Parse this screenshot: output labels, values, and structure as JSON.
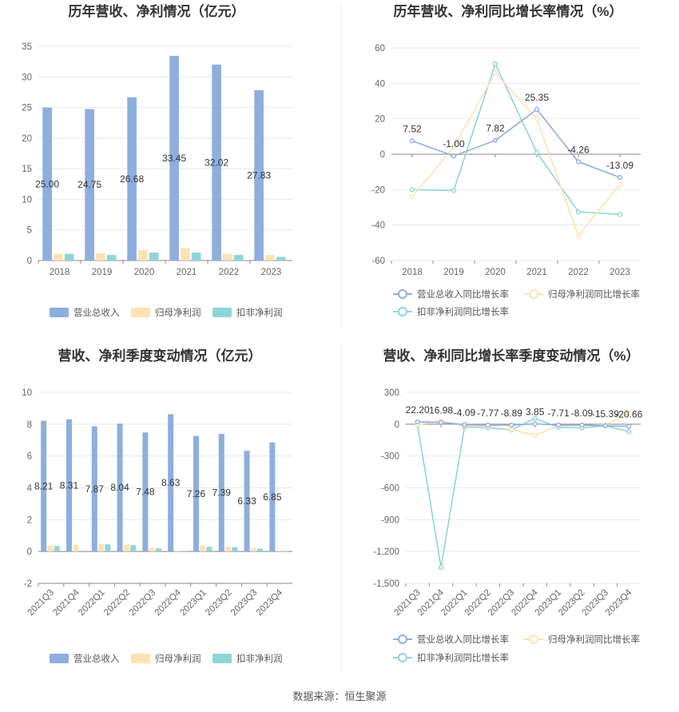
{
  "footer": {
    "source": "数据来源：恒生聚源"
  },
  "colors": {
    "revenue": "#8eaedd",
    "parent_profit": "#fde2b3",
    "nonrecurring_profit": "#8fd5d8",
    "axis": "#888888",
    "grid": "#e8e8e8"
  },
  "chart_data": [
    {
      "type": "bar",
      "title": "历年营收、净利情况（亿元）",
      "categories": [
        "2018",
        "2019",
        "2020",
        "2021",
        "2022",
        "2023"
      ],
      "ylim": [
        0,
        35
      ],
      "yticks": [
        "0",
        "5",
        "10",
        "15",
        "20",
        "25",
        "30",
        "35"
      ],
      "grid": true,
      "legend": "bottom",
      "series": [
        {
          "name": "营业总收入",
          "values": [
            25.0,
            24.75,
            26.68,
            33.45,
            32.02,
            27.83
          ],
          "labels": [
            "25.00",
            "24.75",
            "26.68",
            "33.45",
            "32.02",
            "27.83"
          ]
        },
        {
          "name": "归母净利润",
          "values": [
            1.1,
            1.2,
            1.7,
            2.0,
            1.1,
            0.9
          ]
        },
        {
          "name": "扣非净利润",
          "values": [
            1.1,
            0.9,
            1.3,
            1.3,
            0.9,
            0.6
          ]
        }
      ]
    },
    {
      "type": "line",
      "title": "历年营收、净利同比增长率情况（%）",
      "categories": [
        "2018",
        "2019",
        "2020",
        "2021",
        "2022",
        "2023"
      ],
      "ylim": [
        -60,
        60
      ],
      "yticks": [
        "-60",
        "-40",
        "-20",
        "0",
        "20",
        "40",
        "60"
      ],
      "grid": true,
      "legend": "bottom",
      "series": [
        {
          "name": "营业总收入同比增长率",
          "values": [
            7.52,
            -1.0,
            7.82,
            25.35,
            -4.26,
            -13.09
          ],
          "labels": [
            "7.52",
            "-1.00",
            "7.82",
            "25.35",
            "-4.26",
            "-13.09"
          ]
        },
        {
          "name": "归母净利润同比增长率",
          "values": [
            -24,
            4,
            46,
            20,
            -46,
            -17
          ]
        },
        {
          "name": "扣非净利润同比增长率",
          "values": [
            -20,
            -20.5,
            51,
            1,
            -32.5,
            -34
          ]
        }
      ]
    },
    {
      "type": "bar",
      "title": "营收、净利季度变动情况（亿元）",
      "categories": [
        "2021Q3",
        "2021Q4",
        "2022Q1",
        "2022Q2",
        "2022Q3",
        "2022Q4",
        "2023Q1",
        "2023Q2",
        "2023Q3",
        "2023Q4"
      ],
      "ylim": [
        -2,
        10
      ],
      "yticks": [
        "-2",
        "0",
        "2",
        "4",
        "6",
        "8",
        "10"
      ],
      "grid": true,
      "legend": "bottom",
      "series": [
        {
          "name": "营业总收入",
          "values": [
            8.21,
            8.31,
            7.87,
            8.04,
            7.48,
            8.63,
            7.26,
            7.39,
            6.33,
            6.85
          ],
          "labels": [
            "8.21",
            "8.31",
            "7.87",
            "8.04",
            "7.48",
            "8.63",
            "7.26",
            "7.39",
            "6.33",
            "6.85"
          ]
        },
        {
          "name": "归母净利润",
          "values": [
            0.38,
            0.42,
            0.48,
            0.45,
            0.25,
            0.03,
            0.38,
            0.32,
            0.22,
            0.04
          ]
        },
        {
          "name": "扣非净利润",
          "values": [
            0.35,
            -0.05,
            0.45,
            0.4,
            0.2,
            0.02,
            0.3,
            0.28,
            0.18,
            0.02
          ]
        }
      ]
    },
    {
      "type": "line",
      "title": "营收、净利同比增长率季度变动情况（%）",
      "categories": [
        "2021Q3",
        "2021Q4",
        "2022Q1",
        "2022Q2",
        "2022Q3",
        "2022Q4",
        "2023Q1",
        "2023Q2",
        "2023Q3",
        "2023Q4"
      ],
      "ylim": [
        -1500,
        300
      ],
      "yticks": [
        "-1,500",
        "-1,200",
        "-900",
        "-600",
        "-300",
        "0",
        "300"
      ],
      "grid": true,
      "legend": "bottom",
      "series": [
        {
          "name": "营业总收入同比增长率",
          "values": [
            22.2,
            16.98,
            -4.09,
            -7.77,
            -8.89,
            3.85,
            -7.71,
            -8.09,
            -15.39,
            -20.66
          ],
          "labels": [
            "22.20",
            "16.98",
            "-4.09",
            "-7.77",
            "-8.89",
            "3.85",
            "-7.71",
            "-8.09",
            "-15.39",
            "-20.66"
          ]
        },
        {
          "name": "归母净利润同比增长率",
          "values": [
            -5,
            30,
            -15,
            -20,
            -50,
            -105,
            -15,
            -15,
            -5,
            105
          ]
        },
        {
          "name": "扣非净利润同比增长率",
          "values": [
            -10,
            -1350,
            -25,
            -35,
            -55,
            55,
            -30,
            -35,
            -15,
            -70
          ]
        }
      ]
    }
  ]
}
